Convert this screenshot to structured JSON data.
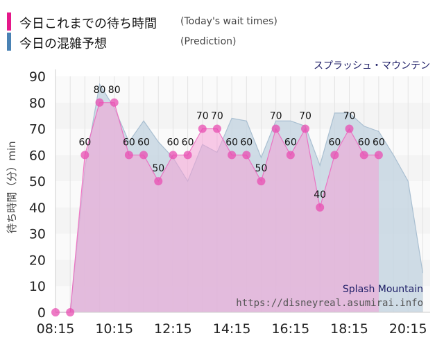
{
  "legend": [
    {
      "label": "今日これまでの待ち時間",
      "note": "(Today's wait times)",
      "color": "#e5188a"
    },
    {
      "label": "今日の混雑予想",
      "note": "(Prediction)",
      "color": "#4a82b4"
    }
  ],
  "attraction_jp": "スプラッシュ・マウンテン",
  "credit": {
    "name": "Splash Mountain",
    "url": "https://disneyreal.asumirai.info"
  },
  "chart_data": {
    "type": "area",
    "title": "",
    "ylabel": "待ち時間（分）min",
    "xlabel": "",
    "ylim": [
      0,
      90
    ],
    "yticks": [
      0,
      10,
      20,
      30,
      40,
      50,
      60,
      70,
      80,
      90
    ],
    "xlim": [
      "08:15",
      "21:00"
    ],
    "xticks": [
      "08:15",
      "10:15",
      "12:15",
      "14:15",
      "16:15",
      "18:15",
      "20:15"
    ],
    "grid": "horizontal bands",
    "colors": {
      "today_fill": "#f4a0d6",
      "today_line": "#ee5fbb",
      "today_marker": "#e84db2",
      "prediction_fill": "#c7d6e2",
      "prediction_line": "#a9bfd1",
      "overlap": "#d7b0d8"
    },
    "series": [
      {
        "name": "今日これまでの待ち時間",
        "kind": "today",
        "points": [
          {
            "x": "08:15",
            "y": 0,
            "label": ""
          },
          {
            "x": "08:45",
            "y": 0,
            "label": ""
          },
          {
            "x": "09:15",
            "y": 60,
            "label": "60"
          },
          {
            "x": "09:45",
            "y": 80,
            "label": "80"
          },
          {
            "x": "10:15",
            "y": 80,
            "label": "80"
          },
          {
            "x": "10:45",
            "y": 60,
            "label": "60"
          },
          {
            "x": "11:15",
            "y": 60,
            "label": "60"
          },
          {
            "x": "11:45",
            "y": 50,
            "label": "50"
          },
          {
            "x": "12:15",
            "y": 60,
            "label": "60"
          },
          {
            "x": "12:45",
            "y": 60,
            "label": "60"
          },
          {
            "x": "13:15",
            "y": 70,
            "label": "70"
          },
          {
            "x": "13:45",
            "y": 70,
            "label": "70"
          },
          {
            "x": "14:15",
            "y": 60,
            "label": "60"
          },
          {
            "x": "14:45",
            "y": 60,
            "label": "60"
          },
          {
            "x": "15:15",
            "y": 50,
            "label": "50"
          },
          {
            "x": "15:45",
            "y": 70,
            "label": "70"
          },
          {
            "x": "16:15",
            "y": 60,
            "label": "60"
          },
          {
            "x": "16:45",
            "y": 70,
            "label": "70"
          },
          {
            "x": "17:15",
            "y": 40,
            "label": "40"
          },
          {
            "x": "17:45",
            "y": 60,
            "label": "60"
          },
          {
            "x": "18:15",
            "y": 70,
            "label": "70"
          },
          {
            "x": "18:45",
            "y": 60,
            "label": "60"
          },
          {
            "x": "19:15",
            "y": 60,
            "label": "60"
          }
        ]
      },
      {
        "name": "今日の混雑予想",
        "kind": "prediction",
        "points": [
          {
            "x": "08:15",
            "y": 0
          },
          {
            "x": "08:45",
            "y": 0
          },
          {
            "x": "09:15",
            "y": 55
          },
          {
            "x": "09:45",
            "y": 87
          },
          {
            "x": "10:15",
            "y": 78
          },
          {
            "x": "10:45",
            "y": 65
          },
          {
            "x": "11:15",
            "y": 73
          },
          {
            "x": "11:45",
            "y": 65
          },
          {
            "x": "12:15",
            "y": 59
          },
          {
            "x": "12:45",
            "y": 50
          },
          {
            "x": "13:15",
            "y": 64
          },
          {
            "x": "13:45",
            "y": 61
          },
          {
            "x": "14:15",
            "y": 74
          },
          {
            "x": "14:45",
            "y": 73
          },
          {
            "x": "15:15",
            "y": 59
          },
          {
            "x": "15:45",
            "y": 73
          },
          {
            "x": "16:15",
            "y": 73
          },
          {
            "x": "16:45",
            "y": 71
          },
          {
            "x": "17:15",
            "y": 56
          },
          {
            "x": "17:45",
            "y": 76
          },
          {
            "x": "18:15",
            "y": 76
          },
          {
            "x": "18:45",
            "y": 71
          },
          {
            "x": "19:15",
            "y": 69
          },
          {
            "x": "19:45",
            "y": 60
          },
          {
            "x": "20:15",
            "y": 50
          },
          {
            "x": "20:45",
            "y": 15
          }
        ]
      }
    ]
  }
}
